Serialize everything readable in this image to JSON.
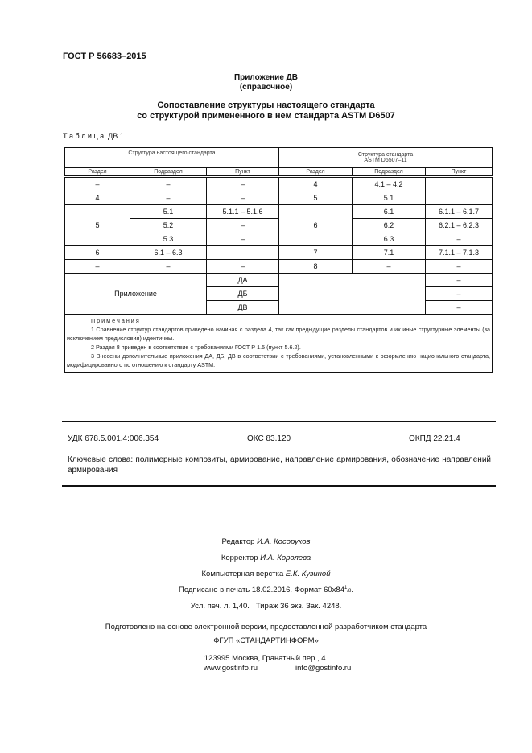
{
  "header": {
    "doc_code": "ГОСТ Р 56683–2015"
  },
  "annex": {
    "title": "Приложение ДВ",
    "subtitle": "(справочное)",
    "heading_line1": "Сопоставление структуры настоящего стандарта",
    "heading_line2": "со структурой примененного в нем стандарта ASTM D6507"
  },
  "table": {
    "caption": "Т а б л и ц а  ДВ.1",
    "group_left": "Структура настоящего стандарта",
    "group_right_line1": "Структура стандарта",
    "group_right_line2": "ASTM D6507–11",
    "columns": [
      "Раздел",
      "Подраздел",
      "Пункт",
      "Раздел",
      "Подраздел",
      "Пункт"
    ],
    "r1": [
      "–",
      "–",
      "–",
      "4",
      "4.1 – 4.2",
      ""
    ],
    "r2": [
      "4",
      "–",
      "–",
      "5",
      "5.1",
      ""
    ],
    "r3": {
      "left_section": "5",
      "right_section": "6",
      "rows": [
        [
          "5.1",
          "5.1.1 – 5.1.6",
          "6.1",
          "6.1.1 – 6.1.7"
        ],
        [
          "5.2",
          "–",
          "6.2",
          "6.2.1 – 6.2.3"
        ],
        [
          "5.3",
          "–",
          "6.3",
          "–"
        ]
      ]
    },
    "r4": [
      "6",
      "6.1 – 6.3",
      "",
      "7",
      "7.1",
      "7.1.1 – 7.1.3"
    ],
    "r5": [
      "–",
      "–",
      "–",
      "8",
      "–",
      "–"
    ],
    "annex_rows": {
      "label": "Приложение",
      "items": [
        [
          "ДА",
          "–"
        ],
        [
          "ДБ",
          "–"
        ],
        [
          "ДВ",
          "–"
        ]
      ]
    },
    "notes": {
      "title": "П р и м е ч а н и я",
      "n1": "1 Сравнение структур стандартов приведено начиная с раздела 4, так как предыдущие разделы стандартов и их иные структурные элементы (за исключением предисловия) идентичны.",
      "n2": "2 Раздел 8 приведен в соответствие с требованиями ГОСТ Р 1.5 (пункт 5.6.2).",
      "n3": "3 Внесены дополнительные приложения ДА, ДБ, ДВ в соответствии с требованиями, установленными к оформлению национального стандарта, модифицированного по отношению к стандарту ASTM."
    }
  },
  "classification": {
    "udk": "УДК 678.5.001.4:006.354",
    "oks": "ОКС 83.120",
    "okpd": "ОКПД 22.21.4"
  },
  "keywords": "Ключевые слова: полимерные композиты, армирование, направление армирования, обозначение направлений армирования",
  "imprint": {
    "editor_label": "Редактор",
    "editor": "И.А. Косоруков",
    "corrector_label": "Корректор",
    "corrector": "И.А. Королева",
    "layout_label": "Компьютерная верстка",
    "layout": "Е.К. Кузиной",
    "signed": "Подписано в печать 18.02.2016. Формат 60x84",
    "format_sup": "1",
    "format_sub": "/8",
    "print_info": "Усл. печ. л. 1,40.   Тираж 36 экз. Зак. 4248.",
    "prepared": "Подготовлено на основе электронной версии, предоставленной разработчиком стандарта",
    "publisher": "ФГУП «СТАНДАРТИНФОРМ»",
    "address": "123995 Москва, Гранатный пер., 4.",
    "website": "www.gostinfo.ru",
    "email": "info@gostinfo.ru"
  }
}
